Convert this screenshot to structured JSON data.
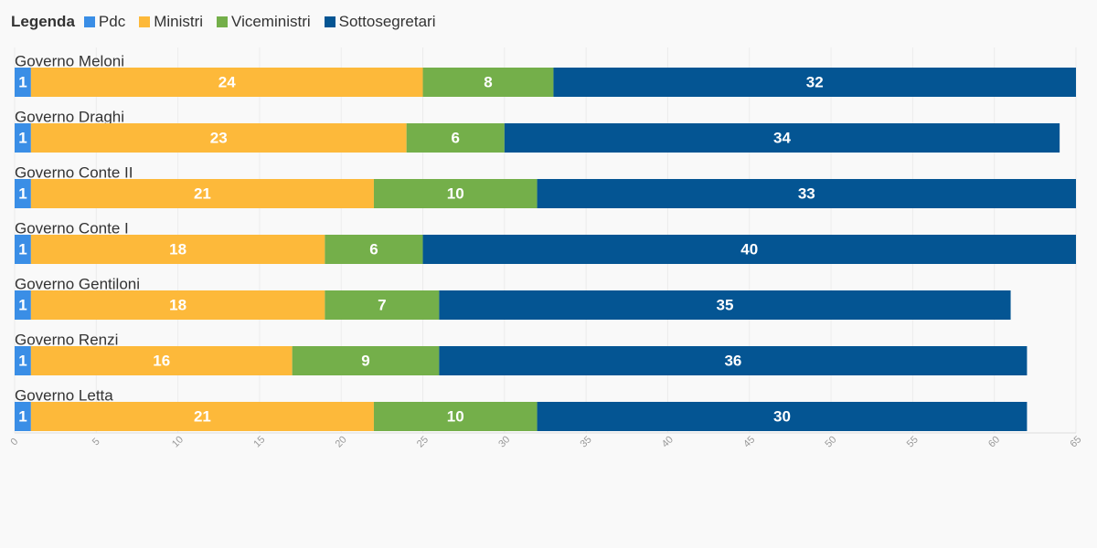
{
  "legend": {
    "title": "Legenda"
  },
  "chart_data": {
    "type": "bar",
    "orientation": "horizontal",
    "stacked": true,
    "categories": [
      "Governo Meloni",
      "Governo Draghi",
      "Governo Conte II",
      "Governo Conte I",
      "Governo Gentiloni",
      "Governo Renzi",
      "Governo Letta"
    ],
    "series": [
      {
        "name": "Pdc",
        "color": "#3a8ee6",
        "values": [
          1,
          1,
          1,
          1,
          1,
          1,
          1
        ]
      },
      {
        "name": "Ministri",
        "color": "#fdb93a",
        "values": [
          24,
          23,
          21,
          18,
          18,
          16,
          21
        ]
      },
      {
        "name": "Viceministri",
        "color": "#74af4a",
        "values": [
          8,
          6,
          10,
          6,
          7,
          9,
          10
        ]
      },
      {
        "name": "Sottosegretari",
        "color": "#045593",
        "values": [
          32,
          34,
          33,
          40,
          35,
          36,
          30
        ]
      }
    ],
    "xlim": [
      0,
      65
    ],
    "xticks": [
      0,
      5,
      10,
      15,
      20,
      25,
      30,
      35,
      40,
      45,
      50,
      55,
      60,
      65
    ],
    "grid": true,
    "legend_position": "top-left"
  }
}
